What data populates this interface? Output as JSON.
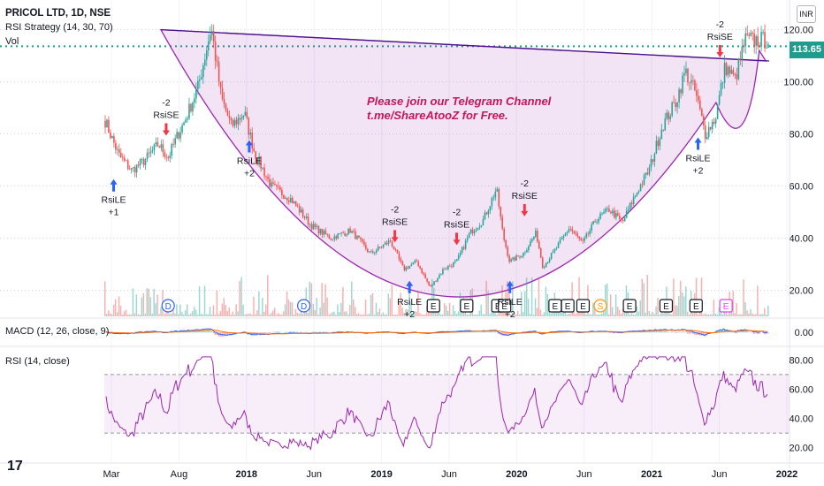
{
  "header": {
    "title": "PRICOL LTD, 1D, NSE",
    "strategy": "RSI Strategy (14, 30, 70)",
    "volume": "Vol"
  },
  "currency": "INR",
  "last_price": "113.65",
  "annotation": {
    "line1": "Please join our Telegram Channel",
    "line2": "t.me/ShareAtooZ for Free."
  },
  "panes": {
    "macd": "MACD (12, 26, close, 9)",
    "rsi": "RSI (14, close)"
  },
  "logo": "17",
  "colors": {
    "up": "#26a69a",
    "down": "#ef5350",
    "cup": "#9c27b0",
    "rsi": "#9c27b0",
    "macd": "#2962ff",
    "signal": "#ff6d00",
    "buy": "#2962ff",
    "sell": "#f23645",
    "price_line": "#1e9c8f"
  },
  "chart_data": [
    {
      "type": "candlestick",
      "title": "PRICOL LTD, 1D, NSE",
      "x_ticks": [
        "Mar",
        "Aug",
        "2018",
        "Jun",
        "2019",
        "Jun",
        "2020",
        "Jun",
        "2021",
        "Jun",
        "2022"
      ],
      "y_ticks": [
        20,
        40,
        60,
        80,
        100,
        120
      ],
      "ylim": [
        10,
        128
      ],
      "last_price": 113.65,
      "path_points": [
        [
          0,
          85
        ],
        [
          0.02,
          72
        ],
        [
          0.04,
          66
        ],
        [
          0.06,
          70
        ],
        [
          0.08,
          76
        ],
        [
          0.095,
          71
        ],
        [
          0.11,
          80
        ],
        [
          0.12,
          85
        ],
        [
          0.14,
          98
        ],
        [
          0.16,
          121
        ],
        [
          0.175,
          94
        ],
        [
          0.19,
          83
        ],
        [
          0.21,
          88
        ],
        [
          0.225,
          73
        ],
        [
          0.25,
          60
        ],
        [
          0.28,
          55
        ],
        [
          0.31,
          45
        ],
        [
          0.34,
          40
        ],
        [
          0.37,
          43
        ],
        [
          0.4,
          34
        ],
        [
          0.43,
          39
        ],
        [
          0.45,
          28
        ],
        [
          0.47,
          31
        ],
        [
          0.49,
          21
        ],
        [
          0.51,
          28
        ],
        [
          0.53,
          31
        ],
        [
          0.55,
          42
        ],
        [
          0.57,
          47
        ],
        [
          0.59,
          59
        ],
        [
          0.6,
          41
        ],
        [
          0.61,
          31
        ],
        [
          0.63,
          34
        ],
        [
          0.65,
          42
        ],
        [
          0.66,
          29
        ],
        [
          0.68,
          36
        ],
        [
          0.7,
          44
        ],
        [
          0.72,
          38
        ],
        [
          0.74,
          47
        ],
        [
          0.76,
          51
        ],
        [
          0.78,
          46
        ],
        [
          0.8,
          57
        ],
        [
          0.82,
          66
        ],
        [
          0.84,
          83
        ],
        [
          0.86,
          92
        ],
        [
          0.875,
          104
        ],
        [
          0.89,
          96
        ],
        [
          0.905,
          80
        ],
        [
          0.92,
          86
        ],
        [
          0.935,
          106
        ],
        [
          0.95,
          101
        ],
        [
          0.965,
          116
        ]
      ],
      "earnings_markers": [
        "E",
        "E",
        "E",
        "E",
        "E",
        "E",
        "E",
        "E",
        "E",
        "E",
        "E"
      ],
      "dividend_markers": [
        "D",
        "D"
      ],
      "split_markers": [
        "S"
      ],
      "signals": [
        {
          "label": "RsiLE",
          "qty": "+1",
          "side": "buy",
          "x": 0.014,
          "y": 64
        },
        {
          "label": "RsiSE",
          "qty": "-2",
          "side": "sell",
          "x": 0.093,
          "y": 78
        },
        {
          "label": "RsiLE",
          "qty": "+2",
          "side": "buy",
          "x": 0.218,
          "y": 79
        },
        {
          "label": "RsiSE",
          "qty": "-2",
          "side": "sell",
          "x": 0.437,
          "y": 37
        },
        {
          "label": "RsiLE",
          "qty": "+2",
          "side": "buy",
          "x": 0.459,
          "y": 25
        },
        {
          "label": "RsiSE",
          "qty": "-2",
          "side": "sell",
          "x": 0.53,
          "y": 36
        },
        {
          "label": "RsiLE",
          "qty": "+2",
          "side": "buy",
          "x": 0.61,
          "y": 25
        },
        {
          "label": "RsiSE",
          "qty": "-2",
          "side": "sell",
          "x": 0.632,
          "y": 47
        },
        {
          "label": "RsiLE",
          "qty": "+2",
          "side": "buy",
          "x": 0.893,
          "y": 80
        },
        {
          "label": "RsiSE",
          "qty": "-2",
          "side": "sell",
          "x": 0.926,
          "y": 108
        }
      ]
    },
    {
      "type": "line",
      "title": "MACD (12, 26, close, 9)",
      "y_ticks": [
        0.0
      ],
      "series": [
        "MACD",
        "Signal"
      ]
    },
    {
      "type": "line",
      "title": "RSI (14, close)",
      "y_ticks": [
        20,
        40,
        60,
        80
      ],
      "ylim": [
        12,
        88
      ],
      "band": [
        30,
        70
      ],
      "series": [
        "RSI"
      ]
    }
  ]
}
